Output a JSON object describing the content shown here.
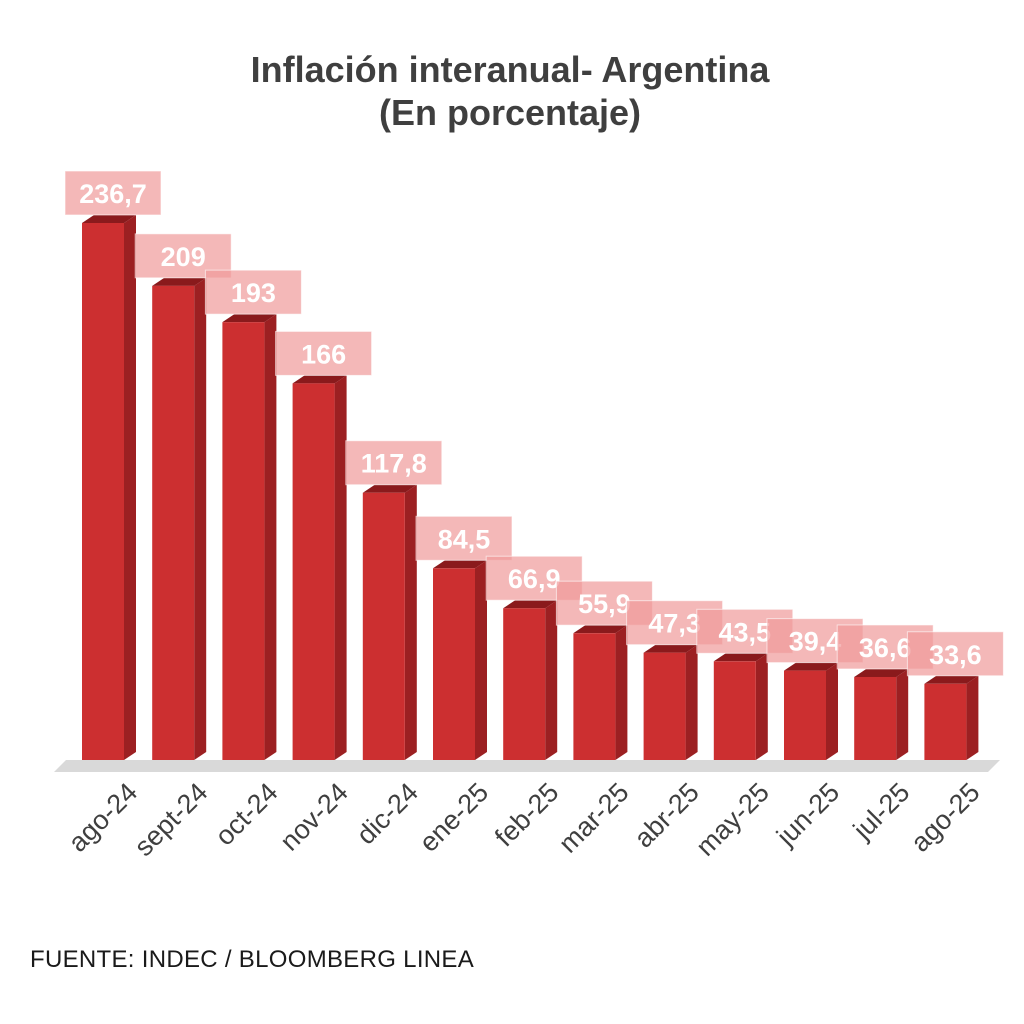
{
  "title_line1": "Inflación interanual- Argentina",
  "title_line2": "(En porcentaje)",
  "source": "FUENTE: INDEC / BLOOMBERG LINEA",
  "colors": {
    "bar_front": "#cc2f30",
    "bar_side": "#9c2022",
    "bar_top": "#8a1a1c",
    "label_bg": "#ef9a9a",
    "floor": "#d9d9d9",
    "text": "#3f3f3f"
  },
  "chart_data": {
    "type": "bar",
    "categories": [
      "ago-24",
      "sept-24",
      "oct-24",
      "nov-24",
      "dic-24",
      "ene-25",
      "feb-25",
      "mar-25",
      "abr-25",
      "may-25",
      "jun-25",
      "jul-25",
      "ago-25"
    ],
    "values": [
      236.7,
      209,
      193,
      166,
      117.8,
      84.5,
      66.9,
      55.9,
      47.3,
      43.5,
      39.4,
      36.6,
      33.6
    ],
    "value_labels": [
      "236,7",
      "209",
      "193",
      "166",
      "117,8",
      "84,5",
      "66,9",
      "55,9",
      "47,3",
      "43,5",
      "39,4",
      "36,6",
      "33,6"
    ],
    "title": "Inflación interanual- Argentina (En porcentaje)",
    "xlabel": "",
    "ylabel": "",
    "ylim": [
      0,
      240
    ],
    "grid": false,
    "legend": "none",
    "style": "3d-column"
  }
}
